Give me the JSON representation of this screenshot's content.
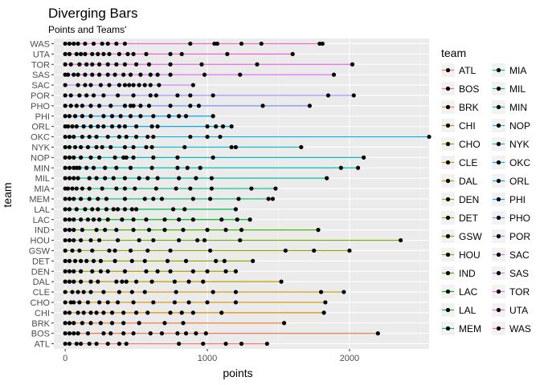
{
  "chart_data": {
    "type": "line",
    "title": "Diverging Bars",
    "subtitle": "Points and Teams'",
    "xlabel": "points",
    "ylabel": "team",
    "xlim": [
      -80,
      2560
    ],
    "x_ticks": [
      0,
      1000,
      2000
    ],
    "x_tick_labels": [
      "0",
      "1000",
      "2000"
    ],
    "grid": true,
    "legend_title": "team",
    "legend_position": "right",
    "categories": [
      "ATL",
      "BOS",
      "BRK",
      "CHI",
      "CHO",
      "CLE",
      "DAL",
      "DEN",
      "DET",
      "GSW",
      "HOU",
      "IND",
      "LAC",
      "LAL",
      "MEM",
      "MIA",
      "MIL",
      "MIN",
      "NOP",
      "NYK",
      "OKC",
      "ORL",
      "PHI",
      "PHO",
      "POR",
      "SAC",
      "SAS",
      "TOR",
      "UTA",
      "WAS"
    ],
    "colors": [
      "#F8766D",
      "#F27D53",
      "#EA8331",
      "#E08B00",
      "#D59100",
      "#C99800",
      "#BC9D00",
      "#ADA200",
      "#9CA700",
      "#88AC00",
      "#70B000",
      "#4EB400",
      "#00B81F",
      "#00BB4E",
      "#00BE6C",
      "#00C085",
      "#00C19C",
      "#00C0B2",
      "#00BDC6",
      "#00B8D8",
      "#00B2E7",
      "#00AAF4",
      "#00A0FD",
      "#6C96FF",
      "#A58AFF",
      "#C77CFF",
      "#DF70F8",
      "#F066EA",
      "#FB61D8",
      "#FF62C3"
    ],
    "series": [
      {
        "name": "ATL",
        "points": [
          0,
          30,
          80,
          110,
          170,
          220,
          300,
          380,
          430,
          800,
          970,
          1130,
          1240,
          1420
        ]
      },
      {
        "name": "BOS",
        "points": [
          0,
          30,
          60,
          90,
          160,
          270,
          320,
          410,
          480,
          600,
          680,
          790,
          850,
          920,
          990,
          2200
        ]
      },
      {
        "name": "BRK",
        "points": [
          0,
          30,
          60,
          120,
          180,
          250,
          330,
          410,
          520,
          700,
          830,
          1540
        ]
      },
      {
        "name": "CHI",
        "points": [
          0,
          30,
          90,
          130,
          180,
          220,
          270,
          330,
          410,
          500,
          580,
          740,
          820,
          900,
          1100,
          1820
        ]
      },
      {
        "name": "CHO",
        "points": [
          0,
          40,
          60,
          100,
          160,
          240,
          300,
          370,
          480,
          620,
          770,
          870,
          1000,
          1200,
          1830
        ]
      },
      {
        "name": "CLE",
        "points": [
          0,
          50,
          90,
          130,
          180,
          270,
          380,
          470,
          560,
          780,
          1040,
          1200,
          1800,
          1960
        ]
      },
      {
        "name": "DAL",
        "points": [
          0,
          30,
          60,
          110,
          180,
          230,
          360,
          400,
          430,
          500,
          610,
          770,
          870,
          970,
          1520
        ]
      },
      {
        "name": "DEN",
        "points": [
          0,
          30,
          60,
          110,
          190,
          250,
          300,
          420,
          570,
          650,
          740,
          900,
          1000,
          1130,
          1200
        ]
      },
      {
        "name": "DET",
        "points": [
          0,
          30,
          70,
          110,
          150,
          200,
          250,
          350,
          470,
          560,
          720,
          850,
          1060,
          1120,
          1320
        ]
      },
      {
        "name": "GSW",
        "points": [
          0,
          50,
          100,
          190,
          310,
          350,
          460,
          580,
          740,
          1020,
          1550,
          1750,
          2000
        ]
      },
      {
        "name": "HOU",
        "points": [
          0,
          30,
          60,
          110,
          180,
          240,
          370,
          520,
          620,
          800,
          930,
          980,
          1230,
          2360
        ]
      },
      {
        "name": "IND",
        "points": [
          0,
          30,
          60,
          120,
          220,
          280,
          360,
          480,
          590,
          700,
          830,
          1000,
          1130,
          1240,
          1780
        ]
      },
      {
        "name": "LAC",
        "points": [
          0,
          30,
          60,
          110,
          160,
          200,
          240,
          300,
          400,
          480,
          570,
          700,
          800,
          900,
          1100,
          1210,
          1300
        ]
      },
      {
        "name": "LAL",
        "points": [
          0,
          30,
          80,
          140,
          190,
          230,
          290,
          340,
          370,
          420,
          470,
          500,
          760,
          840,
          1200
        ]
      },
      {
        "name": "MEM",
        "points": [
          0,
          30,
          60,
          110,
          170,
          230,
          290,
          420,
          560,
          620,
          680,
          900,
          1020,
          1220,
          1430,
          1460
        ]
      },
      {
        "name": "MIA",
        "points": [
          0,
          20,
          50,
          80,
          120,
          170,
          260,
          360,
          420,
          490,
          640,
          780,
          880,
          1030,
          1310,
          1480
        ]
      },
      {
        "name": "MIL",
        "points": [
          0,
          30,
          60,
          90,
          170,
          220,
          280,
          340,
          420,
          520,
          580,
          650,
          800,
          920,
          1030,
          1840
        ]
      },
      {
        "name": "MIN",
        "points": [
          0,
          30,
          60,
          80,
          100,
          150,
          200,
          280,
          360,
          460,
          610,
          790,
          860,
          950,
          1940,
          2060
        ]
      },
      {
        "name": "NOP",
        "points": [
          0,
          30,
          60,
          110,
          180,
          240,
          350,
          410,
          430,
          480,
          620,
          790,
          1040,
          2100
        ]
      },
      {
        "name": "NYK",
        "points": [
          0,
          30,
          70,
          110,
          160,
          220,
          260,
          320,
          420,
          480,
          570,
          610,
          840,
          1170,
          1200,
          1660
        ]
      },
      {
        "name": "OKC",
        "points": [
          0,
          30,
          60,
          120,
          170,
          220,
          300,
          380,
          430,
          500,
          580,
          620,
          880,
          1000,
          1090,
          2560
        ]
      },
      {
        "name": "ORL",
        "points": [
          0,
          20,
          50,
          80,
          130,
          180,
          230,
          270,
          330,
          380,
          420,
          500,
          610,
          650,
          1000,
          1060,
          1110,
          1170
        ]
      },
      {
        "name": "PHI",
        "points": [
          0,
          30,
          70,
          120,
          180,
          270,
          330,
          390,
          460,
          530,
          620,
          730,
          800,
          850,
          1040
        ]
      },
      {
        "name": "PHO",
        "points": [
          0,
          40,
          80,
          120,
          180,
          240,
          320,
          420,
          460,
          480,
          530,
          590,
          740,
          880,
          940,
          1390,
          1720
        ]
      },
      {
        "name": "POR",
        "points": [
          0,
          40,
          100,
          150,
          200,
          270,
          370,
          480,
          600,
          640,
          790,
          880,
          1040,
          1850,
          2030
        ]
      },
      {
        "name": "SAC",
        "points": [
          0,
          90,
          140,
          180,
          250,
          310,
          380,
          420,
          450,
          480,
          520,
          560,
          600,
          660,
          900
        ]
      },
      {
        "name": "SAS",
        "points": [
          0,
          20,
          60,
          90,
          140,
          190,
          240,
          300,
          350,
          410,
          460,
          530,
          600,
          650,
          740,
          980,
          1230,
          1890
        ]
      },
      {
        "name": "TOR",
        "points": [
          0,
          40,
          100,
          150,
          190,
          240,
          300,
          360,
          420,
          500,
          590,
          740,
          960,
          1350,
          2020
        ]
      },
      {
        "name": "UTA",
        "points": [
          0,
          30,
          80,
          110,
          140,
          190,
          230,
          270,
          310,
          380,
          440,
          480,
          570,
          740,
          820,
          1140,
          1600
        ]
      },
      {
        "name": "WAS",
        "points": [
          0,
          30,
          60,
          90,
          140,
          200,
          260,
          300,
          360,
          420,
          880,
          1050,
          1070,
          1240,
          1380,
          1790,
          1810
        ]
      }
    ]
  }
}
